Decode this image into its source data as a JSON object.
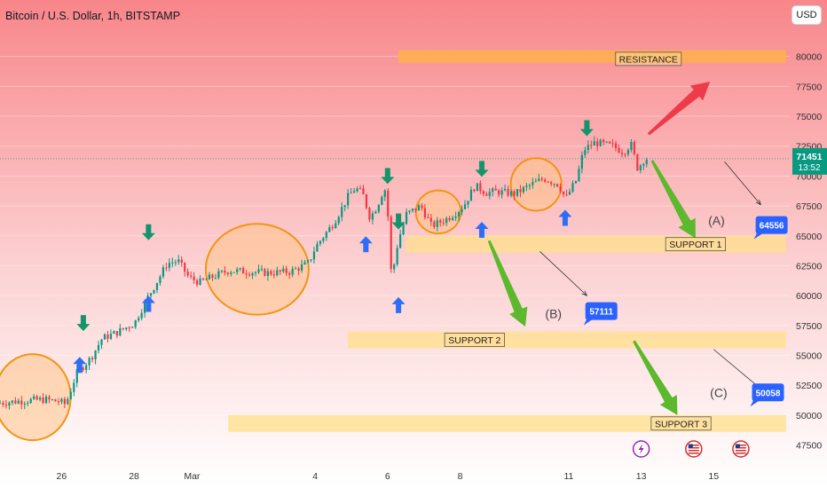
{
  "header": {
    "title": "Bitcoin / U.S. Dollar, 1h, BITSTAMP",
    "currency_button": "USD"
  },
  "price_tag": {
    "price": "71451",
    "countdown": "13:52"
  },
  "colors": {
    "background_top": "#f8868a",
    "background_bottom": "#ffffff",
    "candle_up": "#089981",
    "candle_down": "#f23645",
    "zone_fill": "#ffe08a",
    "resistance_fill": "#ffb04a",
    "circle_fill": "#ffc48a",
    "circle_stroke": "#f39414",
    "arrow_green": "#5cb82c",
    "arrow_red": "#ee3b4a",
    "marker_up": "#2e6ef7",
    "marker_down": "#15946c",
    "target_badge": "#2962ff"
  },
  "chart_data": {
    "type": "candlestick",
    "title": "Bitcoin / U.S. Dollar, 1h, BITSTAMP",
    "y_ticks": [
      47500,
      50000,
      52500,
      55000,
      57500,
      60000,
      62500,
      65000,
      67500,
      70000,
      72500,
      75000,
      77500,
      80000
    ],
    "ylim": [
      46500,
      82500
    ],
    "x_ticks": [
      "26",
      "28",
      "Mar",
      "4",
      "6",
      "8",
      "11",
      "13",
      "15"
    ],
    "x_tick_days": [
      26,
      28,
      29.6,
      33,
      35,
      37,
      40,
      42,
      44
    ],
    "xlim": [
      24.3,
      46.1
    ],
    "current_price": 71451,
    "zones": [
      {
        "label": "RESISTANCE",
        "price": 80000,
        "from_day": 35.3,
        "to_day": 46.0
      },
      {
        "label": "SUPPORT 1",
        "price": 64300,
        "from_day": 35.5,
        "to_day": 46.0
      },
      {
        "label": "SUPPORT 2",
        "price": 56300,
        "from_day": 33.9,
        "to_day": 46.0
      },
      {
        "label": "SUPPORT 3",
        "price": 49300,
        "from_day": 30.6,
        "to_day": 46.0
      }
    ],
    "scenarios": [
      {
        "label": "(A)",
        "target": "64556",
        "target_price": 64556
      },
      {
        "label": "(B)",
        "target": "57111",
        "target_price": 57111
      },
      {
        "label": "(C)",
        "target": "50058",
        "target_price": 50058
      }
    ],
    "price_path": [
      [
        24.3,
        51000
      ],
      [
        25.0,
        51200
      ],
      [
        25.6,
        51300
      ],
      [
        26.0,
        51150
      ],
      [
        26.2,
        50900
      ],
      [
        26.5,
        53500
      ],
      [
        26.9,
        54800
      ],
      [
        27.2,
        56400
      ],
      [
        27.6,
        56900
      ],
      [
        28.1,
        57700
      ],
      [
        28.4,
        59500
      ],
      [
        28.8,
        61600
      ],
      [
        29.0,
        62700
      ],
      [
        29.3,
        62900
      ],
      [
        29.6,
        61500
      ],
      [
        29.9,
        61100
      ],
      [
        30.2,
        61500
      ],
      [
        30.7,
        62100
      ],
      [
        31.2,
        62000
      ],
      [
        31.8,
        61900
      ],
      [
        32.4,
        62000
      ],
      [
        32.9,
        62700
      ],
      [
        33.1,
        64100
      ],
      [
        33.6,
        66100
      ],
      [
        34.0,
        68300
      ],
      [
        34.2,
        69000
      ],
      [
        34.4,
        68500
      ],
      [
        34.6,
        66500
      ],
      [
        34.8,
        67500
      ],
      [
        35.0,
        69100
      ],
      [
        35.1,
        66500
      ],
      [
        35.2,
        61000
      ],
      [
        35.3,
        63500
      ],
      [
        35.4,
        64800
      ],
      [
        35.6,
        66800
      ],
      [
        36.0,
        67500
      ],
      [
        36.3,
        65800
      ],
      [
        36.7,
        66400
      ],
      [
        37.0,
        67000
      ],
      [
        37.2,
        67600
      ],
      [
        37.5,
        69200
      ],
      [
        37.8,
        68600
      ],
      [
        38.1,
        68700
      ],
      [
        38.6,
        68500
      ],
      [
        39.0,
        69200
      ],
      [
        39.4,
        69800
      ],
      [
        39.8,
        69300
      ],
      [
        40.0,
        68100
      ],
      [
        40.3,
        69700
      ],
      [
        40.5,
        72200
      ],
      [
        40.8,
        72800
      ],
      [
        41.3,
        72500
      ],
      [
        41.6,
        72000
      ],
      [
        41.8,
        72700
      ],
      [
        42.0,
        70500
      ],
      [
        42.1,
        71200
      ],
      [
        42.2,
        71451
      ]
    ],
    "markers": [
      {
        "type": "up",
        "day": 26.5,
        "price": 54200
      },
      {
        "type": "down",
        "day": 26.6,
        "price": 57700
      },
      {
        "type": "up",
        "day": 28.4,
        "price": 59300
      },
      {
        "type": "down",
        "day": 28.4,
        "price": 65300
      },
      {
        "type": "up",
        "day": 34.4,
        "price": 64300
      },
      {
        "type": "down",
        "day": 35.0,
        "price": 70000
      },
      {
        "type": "up",
        "day": 35.3,
        "price": 59200
      },
      {
        "type": "down",
        "day": 35.3,
        "price": 66200
      },
      {
        "type": "up",
        "day": 37.6,
        "price": 65500
      },
      {
        "type": "down",
        "day": 37.6,
        "price": 70600
      },
      {
        "type": "up",
        "day": 39.9,
        "price": 66500
      },
      {
        "type": "down",
        "day": 40.5,
        "price": 74000
      }
    ],
    "highlight_circles": [
      {
        "day": 25.2,
        "price": 51500,
        "rx_days": 1.05,
        "ry_price": 3600
      },
      {
        "day": 31.4,
        "price": 62200,
        "rx_days": 1.42,
        "ry_price": 3800
      },
      {
        "day": 36.4,
        "price": 67000,
        "rx_days": 0.62,
        "ry_price": 1800
      },
      {
        "day": 39.1,
        "price": 69300,
        "rx_days": 0.7,
        "ry_price": 2200
      }
    ],
    "event_icons": [
      "lightning",
      "us-flag",
      "us-flag"
    ]
  }
}
